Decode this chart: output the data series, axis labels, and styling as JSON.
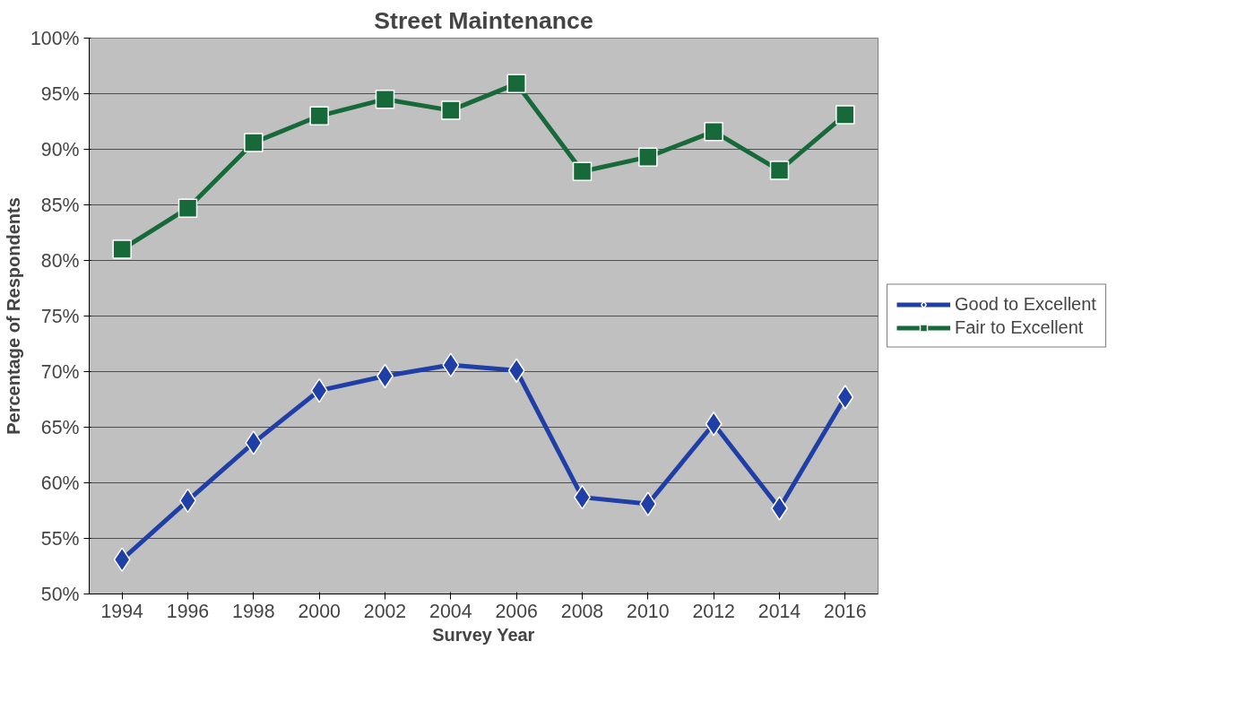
{
  "chart_data": {
    "type": "line",
    "title": "Street Maintenance",
    "xlabel": "Survey Year",
    "ylabel": "Percentage of Respondents",
    "x": [
      1994,
      1996,
      1998,
      2000,
      2002,
      2004,
      2006,
      2008,
      2010,
      2012,
      2014,
      2016
    ],
    "series": [
      {
        "name": "Good to Excellent",
        "color": "#1f3ea6",
        "marker": "diamond",
        "values": [
          53.1,
          58.4,
          63.6,
          68.3,
          69.6,
          70.6,
          70.1,
          58.7,
          58.1,
          65.3,
          57.7,
          67.7
        ]
      },
      {
        "name": "Fair to Excellent",
        "color": "#17693a",
        "marker": "square",
        "values": [
          81.0,
          84.7,
          90.6,
          93.0,
          94.5,
          93.5,
          95.9,
          88.0,
          89.3,
          91.6,
          88.1,
          93.1
        ]
      }
    ],
    "xlim": [
      1993,
      2017
    ],
    "xticks": [
      1994,
      1996,
      1998,
      2000,
      2002,
      2004,
      2006,
      2008,
      2010,
      2012,
      2014,
      2016
    ],
    "ylim": [
      50,
      100
    ],
    "yticks": [
      {
        "value": 50,
        "label": "50%"
      },
      {
        "value": 55,
        "label": "55%"
      },
      {
        "value": 60,
        "label": "60%"
      },
      {
        "value": 65,
        "label": "65%"
      },
      {
        "value": 70,
        "label": "70%"
      },
      {
        "value": 75,
        "label": "75%"
      },
      {
        "value": 80,
        "label": "80%"
      },
      {
        "value": 85,
        "label": "85%"
      },
      {
        "value": 90,
        "label": "90%"
      },
      {
        "value": 95,
        "label": "95%"
      },
      {
        "value": 100,
        "label": "100%"
      }
    ],
    "grid": "y",
    "legend": "right",
    "line_style": "solid"
  }
}
